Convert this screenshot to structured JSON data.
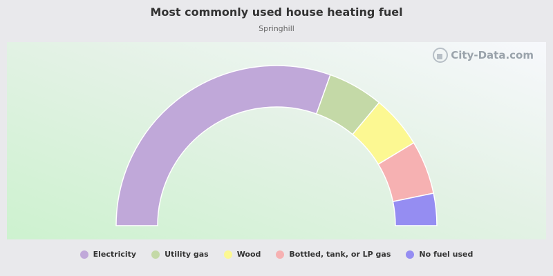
{
  "chart_data": {
    "type": "pie",
    "title": "Most commonly used house heating fuel",
    "subtitle": "Springhill",
    "categories": [
      "Electricity",
      "Utility gas",
      "Wood",
      "Bottled, tank, or LP gas",
      "No fuel used"
    ],
    "values": [
      60.9,
      11.2,
      10.6,
      10.8,
      6.5
    ],
    "colors": [
      "#c0a8d9",
      "#c4d9a7",
      "#fcf892",
      "#f6b1b2",
      "#958df2"
    ],
    "shape": "semicircle-donut",
    "legend_position": "bottom"
  },
  "watermark": {
    "text": "City-Data.com"
  }
}
